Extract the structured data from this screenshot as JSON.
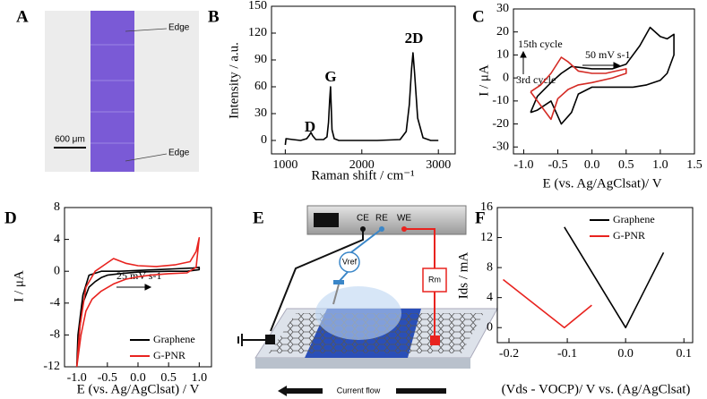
{
  "panel_labels": [
    "A",
    "B",
    "C",
    "D",
    "E",
    "F"
  ],
  "panel_a": {
    "edges": [
      "Edge",
      "Edge"
    ],
    "scale_bar": "600 μm"
  },
  "panel_e": {
    "terminals": [
      "CE",
      "RE",
      "WE"
    ],
    "reference": "Vref",
    "resistor": "Rm",
    "current": "Current flow"
  },
  "chart_data": [
    {
      "type": "line",
      "xlabel": "Raman shift / cm⁻¹",
      "ylabel": "Intensity / a.u.",
      "xlim": [
        820,
        3220
      ],
      "ylim": [
        -15,
        150
      ],
      "xticks": [
        1000,
        2000,
        3000
      ],
      "yticks": [
        0,
        30,
        60,
        90,
        120,
        150
      ],
      "annotations": [
        "D",
        "G",
        "2D"
      ],
      "series": [
        {
          "color": "#000000",
          "x": [
            1000,
            1010,
            1100,
            1200,
            1280,
            1315,
            1335,
            1360,
            1400,
            1500,
            1545,
            1565,
            1580,
            1592,
            1610,
            1640,
            1700,
            1900,
            2200,
            2500,
            2580,
            2620,
            2650,
            2668,
            2690,
            2730,
            2800,
            2900,
            3000
          ],
          "values": [
            -5,
            2,
            1,
            0,
            2,
            6,
            9,
            5,
            1,
            1,
            4,
            20,
            45,
            60,
            12,
            2,
            0,
            0,
            0,
            1,
            10,
            40,
            80,
            98,
            75,
            25,
            3,
            0,
            0
          ]
        }
      ]
    },
    {
      "type": "line",
      "xlabel": "E (vs. Ag/AgClsat)/ V",
      "ylabel": "I / μA",
      "xlim": [
        -1.15,
        1.5
      ],
      "ylim": [
        -33,
        30
      ],
      "xticks": [
        {
          "value": -1,
          "label": "-1.0"
        },
        {
          "value": -0.5,
          "label": "-0.5"
        },
        {
          "value": 0,
          "label": "0.0"
        },
        {
          "value": 0.5,
          "label": "0.5"
        },
        {
          "value": 1,
          "label": "1.0"
        },
        {
          "value": 1.5,
          "label": "1.5"
        }
      ],
      "yticks": [
        -30,
        -20,
        -10,
        0,
        10,
        20,
        30
      ],
      "annotations": [
        "15th cycle",
        "3rd cycle",
        "50 mV s-1"
      ],
      "series": [
        {
          "color": "#000000",
          "x": [
            -0.9,
            -0.8,
            -0.6,
            -0.45,
            -0.3,
            0,
            0.3,
            0.5,
            0.7,
            0.85,
            1.0,
            1.1,
            1.2,
            1.2,
            1.1,
            1.0,
            0.8,
            0.6,
            0.3,
            0,
            -0.2,
            -0.3,
            -0.45,
            -0.6,
            -0.8,
            -0.9
          ],
          "values": [
            -15,
            -8,
            -2,
            2,
            5,
            4,
            4,
            6,
            14,
            22,
            18,
            17,
            19,
            10,
            2,
            -1,
            -3,
            -4,
            -4,
            -4,
            -7,
            -15,
            -20,
            -10,
            -14,
            -15
          ]
        },
        {
          "color": "#d42a24",
          "x": [
            -0.9,
            -0.75,
            -0.6,
            -0.45,
            -0.35,
            -0.2,
            0,
            0.2,
            0.5,
            0.5,
            0.3,
            0,
            -0.2,
            -0.35,
            -0.5,
            -0.6,
            -0.75,
            -0.9
          ],
          "values": [
            -6,
            -3,
            2,
            9,
            7,
            3,
            2,
            2,
            4,
            2,
            0,
            -2,
            -3,
            -5,
            -9,
            -18,
            -12,
            -6
          ]
        }
      ]
    },
    {
      "type": "line",
      "xlabel": "E (vs. Ag/AgClsat) / V",
      "ylabel": "I / μA",
      "xlim": [
        -1.2,
        1.2
      ],
      "ylim": [
        -12,
        8
      ],
      "xticks": [
        {
          "value": -1,
          "label": "-1.0"
        },
        {
          "value": -0.5,
          "label": "-0.5"
        },
        {
          "value": 0,
          "label": "0.0"
        },
        {
          "value": 0.5,
          "label": "0.5"
        },
        {
          "value": 1,
          "label": "1.0"
        }
      ],
      "yticks": [
        -12,
        -8,
        -4,
        0,
        4,
        8
      ],
      "legend": "lower right",
      "annotations": [
        "25 mV s-1"
      ],
      "series": [
        {
          "name": "Graphene",
          "color": "#000000",
          "x": [
            -1.0,
            -0.98,
            -0.9,
            -0.8,
            -0.6,
            -0.3,
            0,
            0.3,
            0.6,
            0.9,
            1.0,
            1.0,
            0.8,
            0.5,
            0,
            -0.3,
            -0.5,
            -0.6,
            -0.7,
            -0.8,
            -0.9,
            -0.95,
            -1.0
          ],
          "values": [
            -12,
            -8,
            -3,
            -0.5,
            0,
            0,
            0.1,
            0.2,
            0.3,
            0.4,
            0.5,
            0.2,
            0,
            0,
            -0.1,
            -0.3,
            -0.5,
            -0.8,
            -1.3,
            -2,
            -4,
            -7,
            -12
          ]
        },
        {
          "name": "G-PNR",
          "color": "#e8231f",
          "x": [
            -1.0,
            -0.95,
            -0.85,
            -0.7,
            -0.55,
            -0.4,
            -0.2,
            0,
            0.3,
            0.6,
            0.85,
            0.95,
            1.0,
            0.95,
            0.8,
            0.5,
            0.2,
            0,
            -0.2,
            -0.4,
            -0.6,
            -0.75,
            -0.85,
            -0.93,
            -1.0
          ],
          "values": [
            -12,
            -7,
            -2,
            0,
            0.8,
            1.6,
            1.0,
            0.7,
            0.6,
            0.8,
            1.2,
            2.5,
            4.2,
            0.5,
            -0.2,
            -0.3,
            -0.5,
            -0.7,
            -1.0,
            -1.6,
            -2.5,
            -3.5,
            -5,
            -8,
            -12
          ]
        }
      ]
    },
    {
      "type": "line",
      "xlabel": "(Vds - VOCP)/ V vs. (Ag/AgClsat)",
      "ylabel": "Ids / mA",
      "xlim": [
        -0.22,
        0.115
      ],
      "ylim": [
        -2,
        16
      ],
      "xticks": [
        -0.2,
        -0.1,
        {
          "value": 0,
          "label": "0.0"
        },
        0.1
      ],
      "yticks": [
        0,
        4,
        8,
        12,
        16
      ],
      "legend": "upper right",
      "series": [
        {
          "name": "Graphene",
          "color": "#000000",
          "x": [
            -0.105,
            0,
            0.065
          ],
          "values": [
            13.4,
            0,
            10
          ]
        },
        {
          "name": "G-PNR",
          "color": "#e8231f",
          "x": [
            -0.21,
            -0.105,
            -0.058
          ],
          "values": [
            6.4,
            0,
            3
          ]
        }
      ]
    }
  ]
}
